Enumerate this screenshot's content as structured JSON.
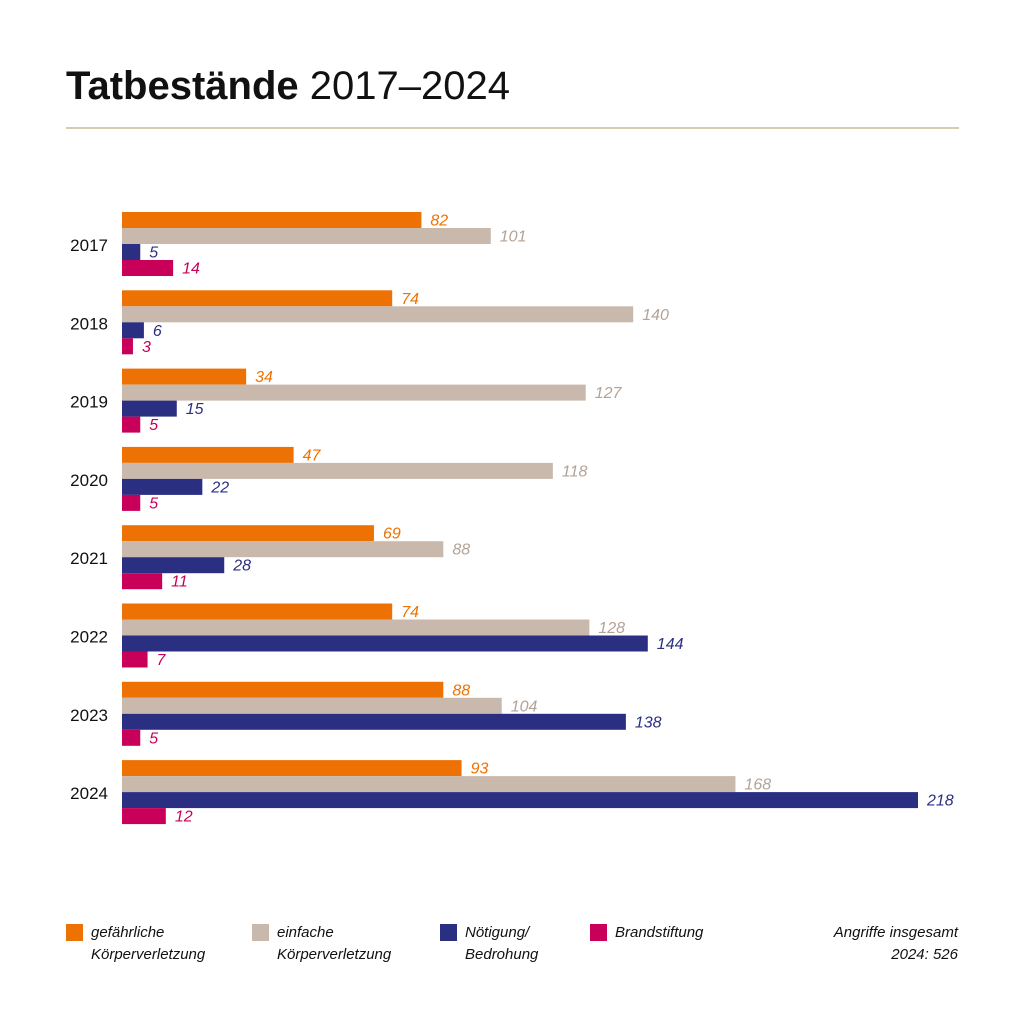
{
  "title_bold": "Tatbestände",
  "title_rest": "2017–2024",
  "chart_data": {
    "type": "bar",
    "orientation": "horizontal",
    "categories": [
      "2017",
      "2018",
      "2019",
      "2020",
      "2021",
      "2022",
      "2023",
      "2024"
    ],
    "series": [
      {
        "name": "gefährliche Körperverletzung",
        "color": "#ee7203",
        "values": [
          82,
          74,
          34,
          47,
          69,
          74,
          88,
          93
        ]
      },
      {
        "name": "einfache Körperverletzung",
        "color": "#c9b9ac",
        "values": [
          101,
          140,
          127,
          118,
          88,
          128,
          104,
          168
        ]
      },
      {
        "name": "Nötigung/ Bedrohung",
        "color": "#2b2f82",
        "values": [
          5,
          6,
          15,
          22,
          28,
          144,
          138,
          218
        ]
      },
      {
        "name": "Brandstiftung",
        "color": "#c8005a",
        "values": [
          14,
          3,
          5,
          5,
          11,
          7,
          5,
          12
        ]
      }
    ],
    "label_colors": [
      "#ee7203",
      "#b3a396",
      "#2b2f82",
      "#c8005a"
    ],
    "xlim": [
      0,
      218
    ],
    "grid": false,
    "legend_position": "bottom"
  },
  "legend": [
    {
      "text": "gefährliche\nKörperverletzung",
      "color": "#ee7203"
    },
    {
      "text": "einfache\nKörperverletzung",
      "color": "#c9b9ac"
    },
    {
      "text": "Nötigung/\nBedrohung",
      "color": "#2b2f82"
    },
    {
      "text": "Brandstiftung",
      "color": "#c8005a"
    }
  ],
  "total_note": "Angriffe insgesamt\n2024: 526"
}
